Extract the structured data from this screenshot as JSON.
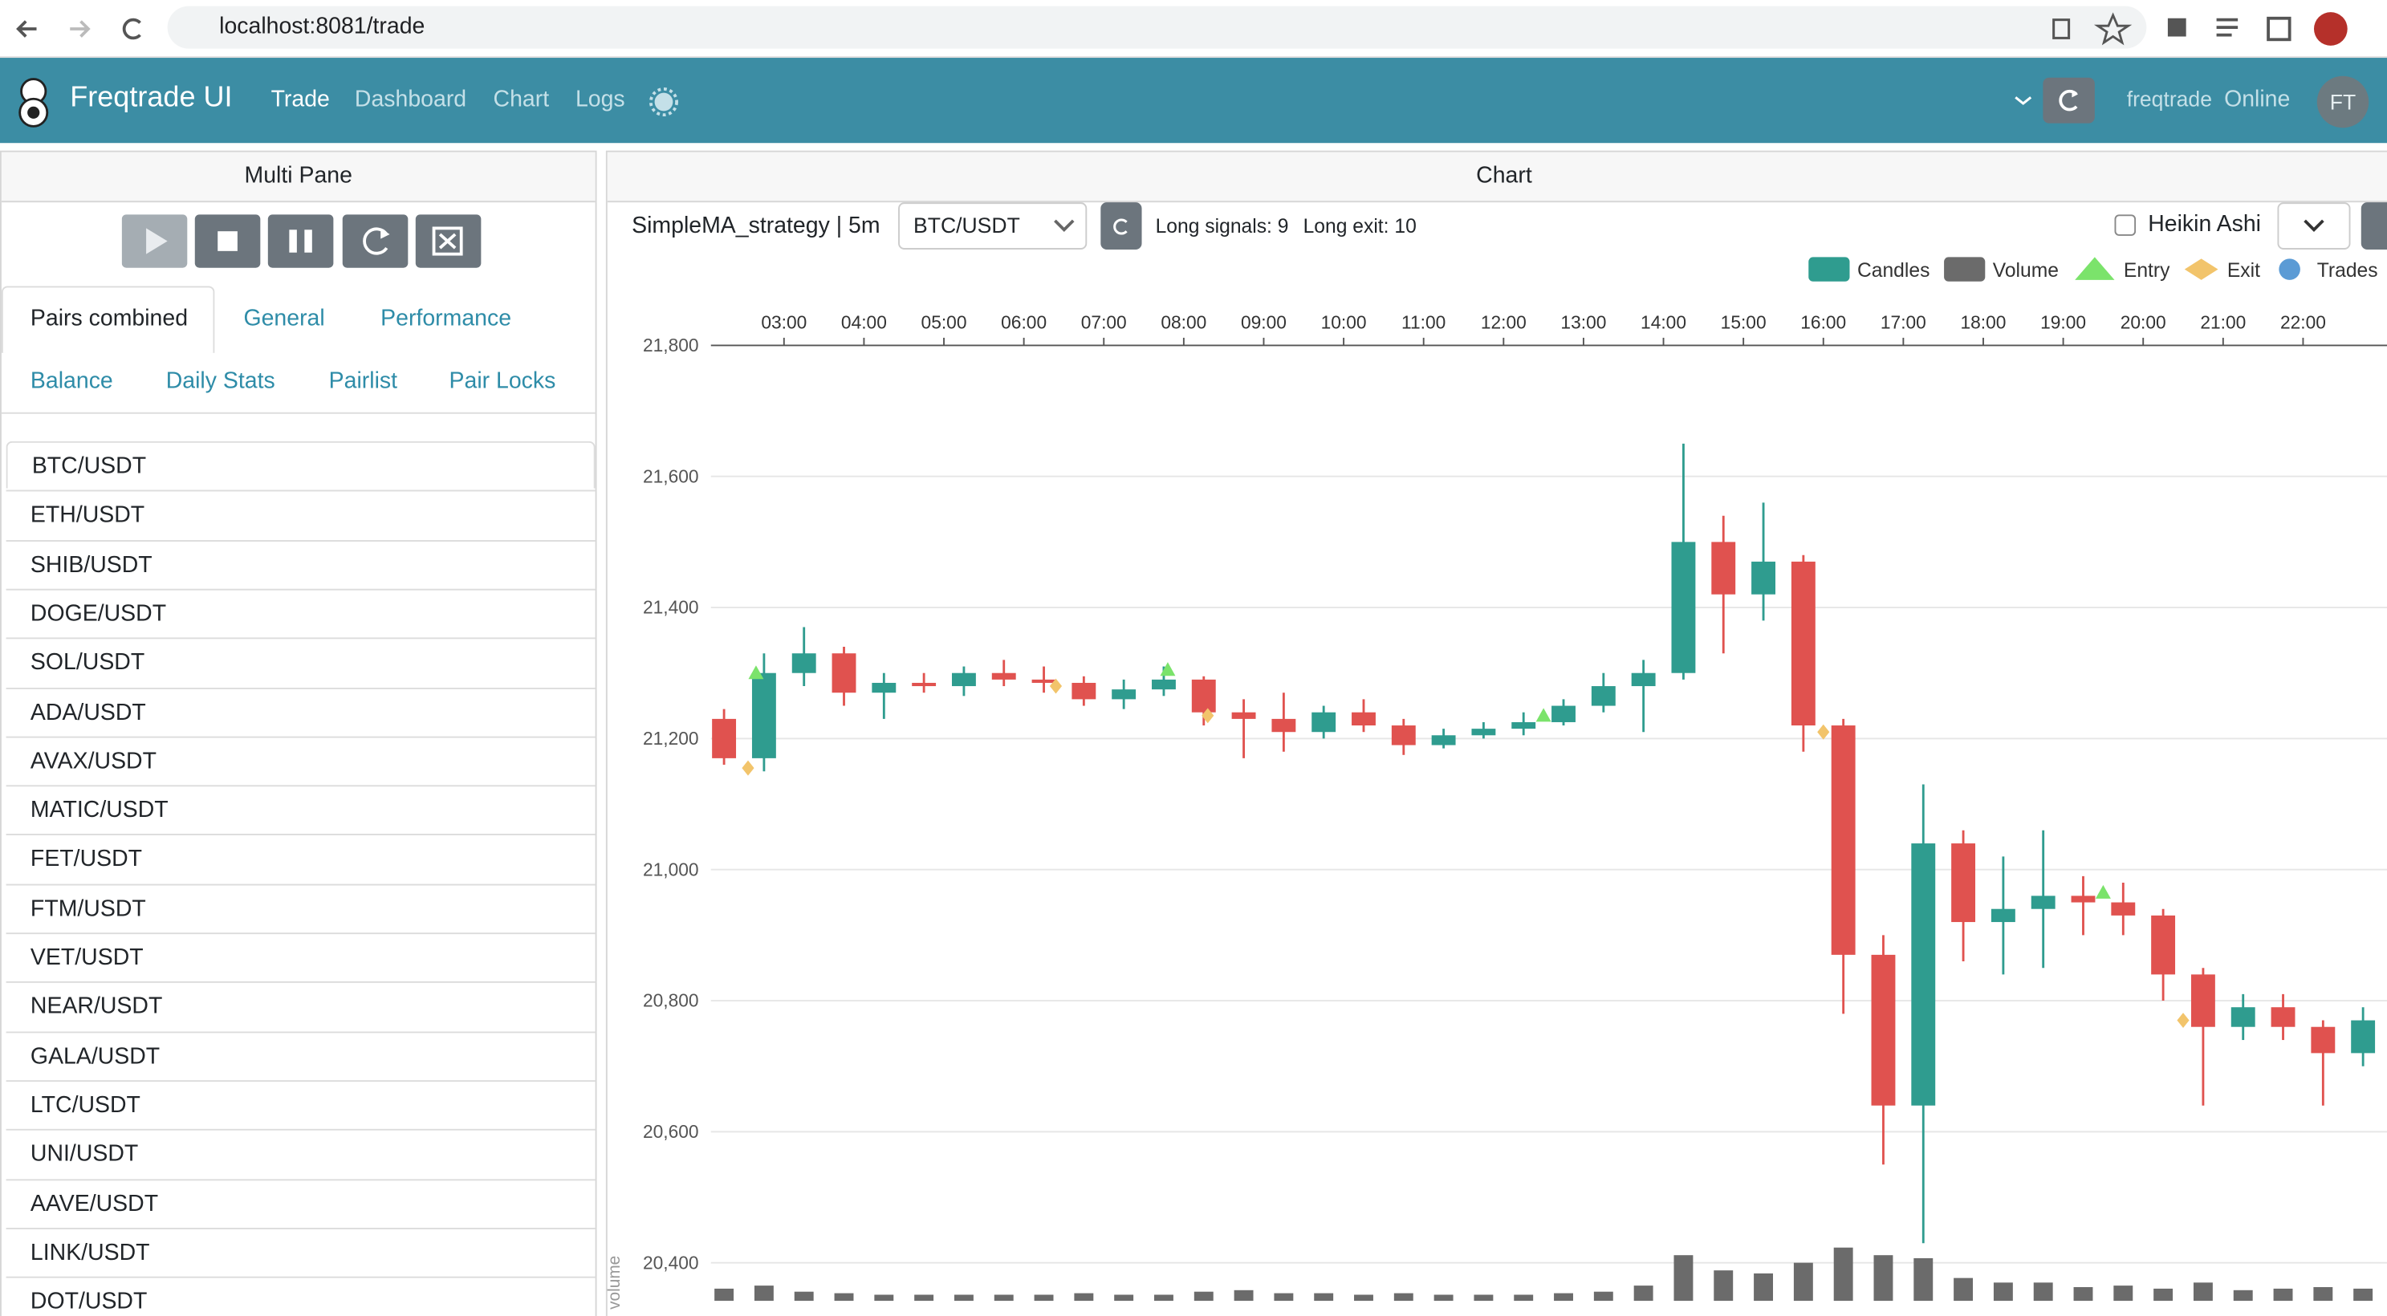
{
  "browser": {
    "url": "localhost:8081/trade"
  },
  "navbar": {
    "brand": "Freqtrade UI",
    "links": [
      "Trade",
      "Dashboard",
      "Chart",
      "Logs"
    ],
    "user": "freqtrade",
    "status": "Online",
    "avatar": "FT"
  },
  "left_pane": {
    "title": "Multi Pane",
    "tabs": [
      "Pairs combined",
      "General",
      "Performance",
      "Balance",
      "Daily Stats",
      "Pairlist",
      "Pair Locks"
    ],
    "pairs": [
      "BTC/USDT",
      "ETH/USDT",
      "SHIB/USDT",
      "DOGE/USDT",
      "SOL/USDT",
      "ADA/USDT",
      "AVAX/USDT",
      "MATIC/USDT",
      "FET/USDT",
      "FTM/USDT",
      "VET/USDT",
      "NEAR/USDT",
      "GALA/USDT",
      "LTC/USDT",
      "UNI/USDT",
      "AAVE/USDT",
      "LINK/USDT",
      "DOT/USDT"
    ]
  },
  "chart_pane": {
    "title": "Chart",
    "strategy": "SimpleMA_strategy | 5m",
    "pair": "BTC/USDT",
    "long_signals": "Long signals: 9",
    "long_exit": "Long exit: 10",
    "heikin_ashi": "Heikin Ashi"
  },
  "chart_data": {
    "type": "candlestick",
    "x": [
      2.25,
      2.75,
      3.25,
      3.75,
      4.25,
      4.75,
      5.25,
      5.75,
      6.25,
      6.75,
      7.25,
      7.75,
      8.25,
      8.75,
      9.25,
      9.75,
      10.25,
      10.75,
      11.25,
      11.75,
      12.25,
      12.75,
      13.25,
      13.75,
      14.25,
      14.75,
      15.25,
      15.75,
      16.25,
      16.75,
      17.25,
      17.75,
      18.25,
      18.75,
      19.25,
      19.75,
      20.25,
      20.75,
      21.25,
      21.75,
      22.25,
      22.75
    ],
    "open": [
      21230,
      21170,
      21300,
      21330,
      21270,
      21285,
      21280,
      21300,
      21290,
      21285,
      21260,
      21275,
      21290,
      21240,
      21230,
      21210,
      21240,
      21220,
      21190,
      21205,
      21215,
      21225,
      21250,
      21280,
      21300,
      21500,
      21420,
      21470,
      21220,
      20870,
      20640,
      21040,
      20920,
      20940,
      20960,
      20950,
      20930,
      20840,
      20760,
      20790,
      20760,
      20720
    ],
    "high": [
      21245,
      21330,
      21370,
      21340,
      21300,
      21300,
      21310,
      21320,
      21310,
      21295,
      21290,
      21310,
      21295,
      21260,
      21270,
      21250,
      21260,
      21230,
      21215,
      21225,
      21240,
      21260,
      21300,
      21320,
      21650,
      21540,
      21560,
      21480,
      21230,
      20900,
      21130,
      21060,
      21020,
      21060,
      20990,
      20980,
      20940,
      20850,
      20810,
      20810,
      20770,
      20790
    ],
    "low": [
      21160,
      21150,
      21280,
      21250,
      21230,
      21270,
      21265,
      21280,
      21270,
      21250,
      21245,
      21265,
      21220,
      21170,
      21180,
      21200,
      21210,
      21175,
      21185,
      21200,
      21205,
      21220,
      21240,
      21210,
      21290,
      21330,
      21380,
      21180,
      20780,
      20550,
      20430,
      20860,
      20840,
      20850,
      20900,
      20900,
      20800,
      20640,
      20740,
      20740,
      20640,
      20700
    ],
    "close": [
      21170,
      21300,
      21330,
      21270,
      21285,
      21280,
      21300,
      21290,
      21285,
      21260,
      21275,
      21290,
      21240,
      21230,
      21210,
      21240,
      21220,
      21190,
      21205,
      21215,
      21225,
      21250,
      21280,
      21300,
      21500,
      21420,
      21470,
      21220,
      20870,
      20640,
      21040,
      20920,
      20940,
      20960,
      20950,
      20930,
      20840,
      20760,
      20790,
      20760,
      20720,
      20770
    ],
    "volume": [
      8,
      10,
      6,
      5,
      4,
      4,
      4,
      4,
      4,
      5,
      4,
      4,
      6,
      7,
      5,
      5,
      4,
      5,
      4,
      4,
      4,
      5,
      6,
      10,
      30,
      20,
      18,
      25,
      35,
      30,
      28,
      15,
      12,
      12,
      9,
      10,
      8,
      12,
      7,
      8,
      9,
      8
    ],
    "volume_label": "volume",
    "volume_lim": [
      0,
      60
    ],
    "up_color": "#2f9c8f",
    "down_color": "#e0524f",
    "volume_color": "#6b6b6b",
    "entries": {
      "x": [
        2.65,
        7.8,
        12.5,
        19.5
      ],
      "values": [
        21300,
        21305,
        21235,
        20965
      ],
      "color": "#7be36b"
    },
    "exits": {
      "x": [
        2.55,
        6.4,
        8.3,
        16.0,
        20.5
      ],
      "values": [
        21155,
        21280,
        21235,
        21210,
        20770
      ],
      "color": "#f2c46b"
    },
    "legend": [
      {
        "name": "Candles",
        "color": "#2f9c8f",
        "shape": "rect"
      },
      {
        "name": "Volume",
        "color": "#6b6b6b",
        "shape": "rect"
      },
      {
        "name": "Entry",
        "color": "#7be36b",
        "shape": "triangle"
      },
      {
        "name": "Exit",
        "color": "#f2c46b",
        "shape": "diamond"
      },
      {
        "name": "Trades",
        "color": "#5b9bd5",
        "shape": "circle"
      }
    ],
    "xlim": [
      2.086,
      23.05
    ],
    "xticks": [
      {
        "value": 3,
        "label": "03:00"
      },
      {
        "value": 4,
        "label": "04:00"
      },
      {
        "value": 5,
        "label": "05:00"
      },
      {
        "value": 6,
        "label": "06:00"
      },
      {
        "value": 7,
        "label": "07:00"
      },
      {
        "value": 8,
        "label": "08:00"
      },
      {
        "value": 9,
        "label": "09:00"
      },
      {
        "value": 10,
        "label": "10:00"
      },
      {
        "value": 11,
        "label": "11:00"
      },
      {
        "value": 12,
        "label": "12:00"
      },
      {
        "value": 13,
        "label": "13:00"
      },
      {
        "value": 14,
        "label": "14:00"
      },
      {
        "value": 15,
        "label": "15:00"
      },
      {
        "value": 16,
        "label": "16:00"
      },
      {
        "value": 17,
        "label": "17:00"
      },
      {
        "value": 18,
        "label": "18:00"
      },
      {
        "value": 19,
        "label": "19:00"
      },
      {
        "value": 20,
        "label": "20:00"
      },
      {
        "value": 21,
        "label": "21:00"
      },
      {
        "value": 22,
        "label": "22:00"
      }
    ],
    "ylim": [
      20342,
      21800
    ],
    "yticks": [
      {
        "value": 20400,
        "label": "20,400"
      },
      {
        "value": 20600,
        "label": "20,600"
      },
      {
        "value": 20800,
        "label": "20,800"
      },
      {
        "value": 21000,
        "label": "21,000"
      },
      {
        "value": 21200,
        "label": "21,200"
      },
      {
        "value": 21400,
        "label": "21,400"
      },
      {
        "value": 21600,
        "label": "21,600"
      },
      {
        "value": 21800,
        "label": "21,800"
      }
    ],
    "grid": true
  }
}
